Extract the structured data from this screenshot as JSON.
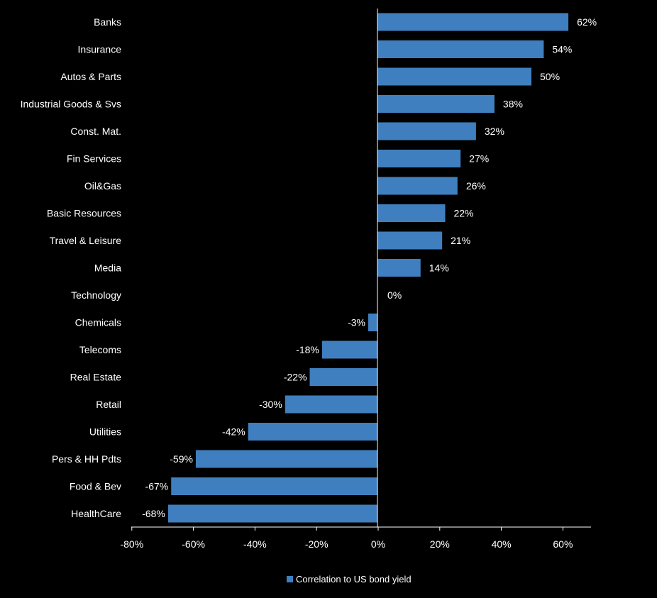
{
  "chart_data": {
    "type": "bar",
    "orientation": "horizontal",
    "categories": [
      "Banks",
      "Insurance",
      "Autos & Parts",
      "Industrial Goods & Svs",
      "Const. Mat.",
      "Fin Services",
      "Oil&Gas",
      "Basic Resources",
      "Travel & Leisure",
      "Media",
      "Technology",
      "Chemicals",
      "Telecoms",
      "Real Estate",
      "Retail",
      "Utilities",
      "Pers & HH Pdts",
      "Food & Bev",
      "HealthCare"
    ],
    "series": [
      {
        "name": "Correlation to US bond yield",
        "values": [
          62,
          54,
          50,
          38,
          32,
          27,
          26,
          22,
          21,
          14,
          0,
          -3,
          -18,
          -22,
          -30,
          -42,
          -59,
          -67,
          -68
        ],
        "labels": [
          "62%",
          "54%",
          "50%",
          "38%",
          "32%",
          "27%",
          "26%",
          "22%",
          "21%",
          "14%",
          "0%",
          "-3%",
          "-18%",
          "-22%",
          "-30%",
          "-42%",
          "-59%",
          "-67%",
          "-68%"
        ]
      }
    ],
    "xlim": [
      -80,
      70
    ],
    "xticks": [
      -80,
      -60,
      -40,
      -20,
      0,
      20,
      40,
      60
    ],
    "xtick_labels": [
      "-80%",
      "-60%",
      "-40%",
      "-20%",
      "0%",
      "20%",
      "40%",
      "60%"
    ],
    "title": "",
    "xlabel": "",
    "ylabel": "",
    "grid": false,
    "legend_position": "bottom",
    "colors": {
      "bar": "#3f7fbf",
      "background": "#000000",
      "text": "#ffffff",
      "axis": "#ffffff"
    }
  }
}
